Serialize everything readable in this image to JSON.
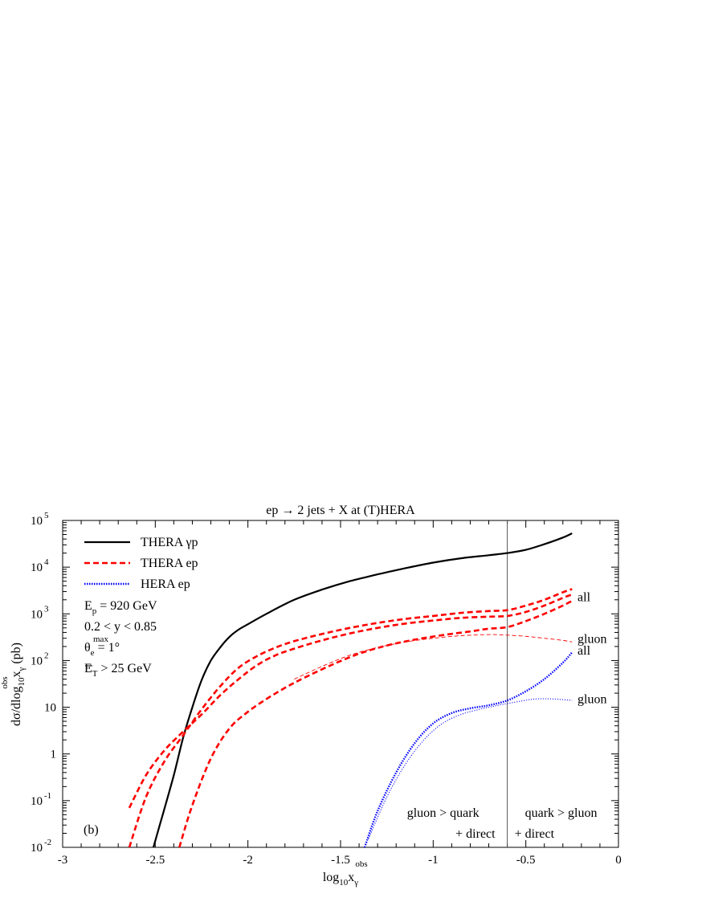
{
  "chart_data": {
    "type": "line",
    "title": "ep → 2 jets + X at (T)HERA",
    "panel_label": "(b)",
    "xlabel": {
      "base": "log",
      "sub1": "10",
      "mid": "x",
      "sub2": "γ",
      "sup": "obs"
    },
    "ylabel": {
      "pre": "dσ/dlog",
      "sub1": "10",
      "mid": "x",
      "sub2": "γ",
      "sup": "obs",
      "post": " (pb)"
    },
    "xlim": [
      -3,
      0
    ],
    "ylim": [
      0.01,
      100000
    ],
    "yscale": "log",
    "x_ticks": [
      -3,
      -2.5,
      -2,
      -1.5,
      -1,
      -0.5,
      0
    ],
    "x_tick_labels": [
      "-3",
      "-2.5",
      "-2",
      "-1.5",
      "-1",
      "-0.5",
      "0"
    ],
    "y_ticks": [
      {
        "value": 0.01,
        "base": "10",
        "exp": "-2"
      },
      {
        "value": 0.1,
        "base": "10",
        "exp": "-1"
      },
      {
        "value": 1,
        "base": "1",
        "exp": ""
      },
      {
        "value": 10,
        "base": "10",
        "exp": ""
      },
      {
        "value": 100,
        "base": "10",
        "exp": "2"
      },
      {
        "value": 1000,
        "base": "10",
        "exp": "3"
      },
      {
        "value": 10000,
        "base": "10",
        "exp": "4"
      },
      {
        "value": 100000,
        "base": "10",
        "exp": "5"
      }
    ],
    "divider_x": -0.6,
    "legend": [
      {
        "label": "THERA γp",
        "color": "#000000",
        "style": "solid"
      },
      {
        "label": "THERA ep",
        "color": "#ff0000",
        "style": "dashed"
      },
      {
        "label": "HERA ep",
        "color": "#0000ff",
        "style": "dotted"
      }
    ],
    "cuts": [
      {
        "main": "E",
        "sub": "p",
        "sup": "",
        "rest": " = 920 GeV"
      },
      {
        "main": "0.2 < y < 0.85",
        "sub": "",
        "sup": "",
        "rest": ""
      },
      {
        "main": "θ",
        "sub": "e",
        "sup": "max",
        "rest": " = 1°"
      },
      {
        "main": "E",
        "sub": "T",
        "sup": "",
        "rest": " > 25 GeV"
      }
    ],
    "curve_labels": [
      {
        "text": "all",
        "x": -0.26,
        "y": 2300
      },
      {
        "text": "gluon",
        "x": -0.26,
        "y": 290
      },
      {
        "text": "all",
        "x": -0.26,
        "y": 165
      },
      {
        "text": "gluon",
        "x": -0.26,
        "y": 15
      }
    ],
    "region_labels": [
      {
        "line1": "gluon > quark",
        "line2": "+ direct",
        "side": "left"
      },
      {
        "line1": "quark > gluon",
        "line2": "+ direct",
        "side": "right"
      }
    ],
    "series": [
      {
        "name": "THERA γp",
        "color": "#000000",
        "style": "solid",
        "width": 2.2,
        "x": [
          -2.51,
          -2.46,
          -2.4,
          -2.35,
          -2.3,
          -2.25,
          -2.2,
          -2.15,
          -2.1,
          -2.05,
          -2.0,
          -1.9,
          -1.75,
          -1.6,
          -1.45,
          -1.3,
          -1.15,
          -1.0,
          -0.85,
          -0.7,
          -0.6,
          -0.5,
          -0.4,
          -0.3,
          -0.25
        ],
        "y": [
          0.01,
          0.05,
          0.35,
          2.2,
          10,
          38,
          100,
          190,
          320,
          460,
          600,
          1000,
          2000,
          3300,
          5000,
          7000,
          9500,
          12500,
          15500,
          18000,
          20000,
          23500,
          31000,
          43000,
          53000
        ]
      },
      {
        "name": "THERA ep (upper)",
        "color": "#ff0000",
        "style": "dashed",
        "width": 2.6,
        "x": [
          -2.64,
          -2.55,
          -2.45,
          -2.35,
          -2.25,
          -2.15,
          -2.05,
          -1.95,
          -1.85,
          -1.75,
          -1.6,
          -1.45,
          -1.3,
          -1.15,
          -1.0,
          -0.85,
          -0.7,
          -0.6,
          -0.5,
          -0.4,
          -0.3,
          -0.25
        ],
        "y": [
          0.01,
          0.12,
          0.7,
          2.5,
          9,
          28,
          70,
          125,
          190,
          260,
          370,
          500,
          640,
          780,
          900,
          1050,
          1150,
          1200,
          1500,
          2000,
          2900,
          3400
        ]
      },
      {
        "name": "THERA ep (middle)",
        "color": "#ff0000",
        "style": "dashed",
        "width": 2.6,
        "x": [
          -2.64,
          -2.55,
          -2.45,
          -2.35,
          -2.25,
          -2.15,
          -2.05,
          -1.95,
          -1.85,
          -1.75,
          -1.6,
          -1.45,
          -1.3,
          -1.15,
          -1.0,
          -0.85,
          -0.7,
          -0.6,
          -0.5,
          -0.4,
          -0.3,
          -0.25
        ],
        "y": [
          0.07,
          0.35,
          1.2,
          3.0,
          7.0,
          18,
          40,
          80,
          130,
          180,
          270,
          380,
          500,
          620,
          720,
          820,
          870,
          900,
          1100,
          1500,
          2200,
          2600
        ]
      },
      {
        "name": "THERA ep (lower)",
        "color": "#ff0000",
        "style": "dashed",
        "width": 2.6,
        "x": [
          -2.37,
          -2.3,
          -2.2,
          -2.1,
          -2.0,
          -1.9,
          -1.8,
          -1.7,
          -1.55,
          -1.4,
          -1.25,
          -1.1,
          -0.95,
          -0.8,
          -0.7,
          -0.6,
          -0.5,
          -0.4,
          -0.3,
          -0.25
        ],
        "y": [
          0.01,
          0.08,
          0.8,
          3.5,
          8,
          15,
          26,
          42,
          80,
          140,
          210,
          280,
          350,
          420,
          480,
          520,
          700,
          1000,
          1500,
          1900
        ]
      },
      {
        "name": "THERA ep gluon",
        "color": "#ff0000",
        "style": "dashed-thin",
        "width": 0.9,
        "x": [
          -1.75,
          -1.6,
          -1.45,
          -1.3,
          -1.15,
          -1.0,
          -0.85,
          -0.7,
          -0.6,
          -0.5,
          -0.4,
          -0.3,
          -0.25
        ],
        "y": [
          40,
          75,
          130,
          190,
          250,
          300,
          340,
          360,
          350,
          330,
          300,
          270,
          250
        ]
      },
      {
        "name": "HERA ep all",
        "color": "#0000ff",
        "style": "dotted",
        "width": 2.4,
        "x": [
          -1.37,
          -1.3,
          -1.2,
          -1.1,
          -1.0,
          -0.9,
          -0.8,
          -0.7,
          -0.6,
          -0.5,
          -0.4,
          -0.3,
          -0.25
        ],
        "y": [
          0.01,
          0.06,
          0.4,
          1.7,
          4.5,
          7.5,
          9.5,
          11,
          14,
          22,
          40,
          90,
          150
        ]
      },
      {
        "name": "HERA ep gluon",
        "color": "#0000ff",
        "style": "dotted-thin",
        "width": 1.0,
        "x": [
          -1.35,
          -1.25,
          -1.15,
          -1.05,
          -0.95,
          -0.85,
          -0.75,
          -0.65,
          -0.55,
          -0.45,
          -0.35,
          -0.25
        ],
        "y": [
          0.015,
          0.12,
          0.6,
          2.0,
          4.5,
          7.0,
          9.0,
          11,
          13,
          15,
          15,
          14
        ]
      }
    ]
  }
}
